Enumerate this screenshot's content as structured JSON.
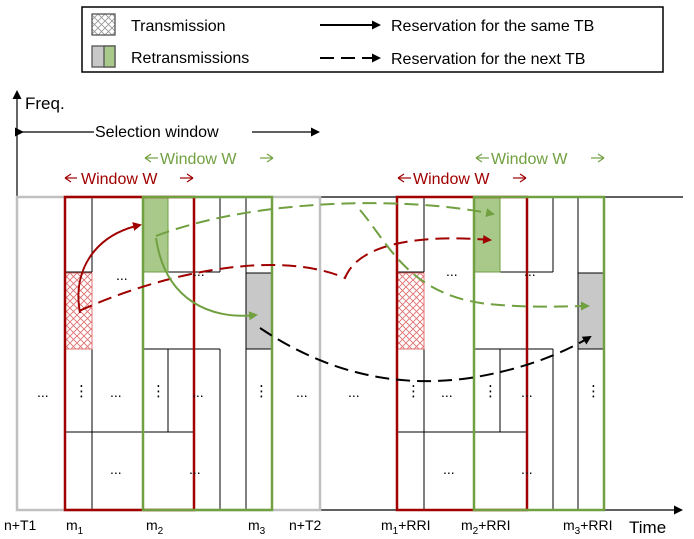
{
  "legend": {
    "transmission": "Transmission",
    "retransmissions": "Retransmissions",
    "same_tb": "Reservation for the same TB",
    "next_tb": "Reservation for the next TB"
  },
  "axes": {
    "y_label": "Freq.",
    "x_label": "Time"
  },
  "annotations": {
    "selection_window": "Selection window",
    "window_w_red_1": "Window W",
    "window_w_green_1": "Window W",
    "window_w_red_2": "Window W",
    "window_w_green_2": "Window W"
  },
  "ticks": {
    "nT1": "n+T1",
    "m1": "m",
    "m1_sub": "1",
    "m2": "m",
    "m2_sub": "2",
    "m3": "m",
    "m3_sub": "3",
    "nT2": "n+T2",
    "m1rri": "m",
    "m1rri_sub": "1",
    "m1rri_suffix": "+RRI",
    "m2rri": "m",
    "m2rri_sub": "2",
    "m2rri_suffix": "+RRI",
    "m3rri": "m",
    "m3rri_sub": "3",
    "m3rri_suffix": "+RRI"
  },
  "cell_glyphs": {
    "ellipsis": "...",
    "vertical_dots": "⋮"
  },
  "colors": {
    "red": "#a00000",
    "green": "#70a040",
    "green_fill": "#a9c98a",
    "gray_fill": "#c8c8c8",
    "grid_gray": "#c0c0c0",
    "hatch": "#e07070"
  }
}
